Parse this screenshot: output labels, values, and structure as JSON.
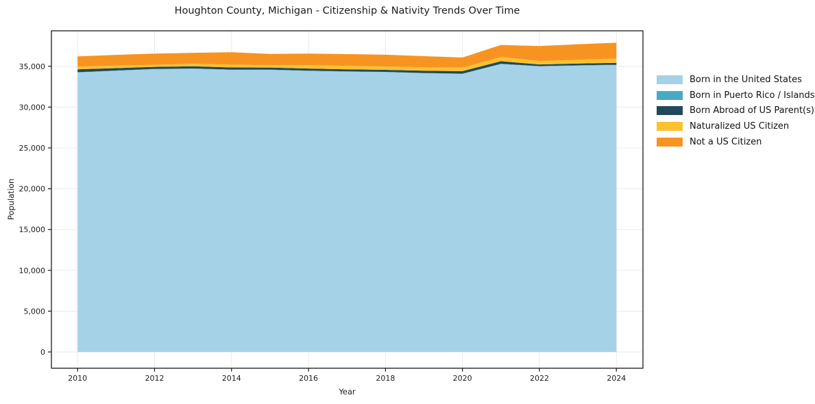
{
  "chart_data": {
    "type": "area",
    "stacked": true,
    "title": "Houghton County, Michigan - Citizenship & Nativity Trends Over Time",
    "xlabel": "Year",
    "ylabel": "Population",
    "x": [
      2010,
      2011,
      2012,
      2013,
      2014,
      2015,
      2016,
      2017,
      2018,
      2019,
      2020,
      2021,
      2022,
      2023,
      2024
    ],
    "series": [
      {
        "name": "Born in the United States",
        "color": "#a6d2e7",
        "values": [
          34250,
          34450,
          34650,
          34700,
          34560,
          34560,
          34430,
          34350,
          34290,
          34150,
          34070,
          35270,
          34990,
          35080,
          35160
        ]
      },
      {
        "name": "Born in Puerto Rico / Islands",
        "color": "#48abc4",
        "values": [
          30,
          30,
          30,
          30,
          40,
          40,
          40,
          30,
          30,
          30,
          30,
          40,
          40,
          40,
          40
        ]
      },
      {
        "name": "Born Abroad of US Parent(s)",
        "color": "#21495c",
        "values": [
          350,
          300,
          250,
          280,
          260,
          250,
          250,
          250,
          250,
          280,
          310,
          320,
          200,
          220,
          230
        ]
      },
      {
        "name": "Naturalized US Citizen",
        "color": "#fcc12f",
        "values": [
          340,
          300,
          260,
          300,
          340,
          280,
          420,
          430,
          420,
          420,
          420,
          510,
          420,
          470,
          510
        ]
      },
      {
        "name": "Not a US Citizen",
        "color": "#f79421",
        "values": [
          1250,
          1320,
          1370,
          1340,
          1530,
          1390,
          1420,
          1440,
          1430,
          1370,
          1250,
          1480,
          1830,
          1890,
          1950
        ]
      }
    ],
    "xlim": [
      2009.32,
      2024.69
    ],
    "ylim": [
      -1990,
      39350
    ],
    "xticks": [
      2010,
      2012,
      2014,
      2016,
      2018,
      2020,
      2022,
      2024
    ],
    "yticks": [
      0,
      5000,
      10000,
      15000,
      20000,
      25000,
      30000,
      35000
    ],
    "ytick_labels": [
      "0",
      "5,000",
      "10,000",
      "15,000",
      "20,000",
      "25,000",
      "30,000",
      "35,000"
    ],
    "grid": true,
    "legend_position": "right",
    "background": "#ffffff",
    "text_color": "#1a1a1a",
    "grid_color": "#e8e8e8"
  }
}
